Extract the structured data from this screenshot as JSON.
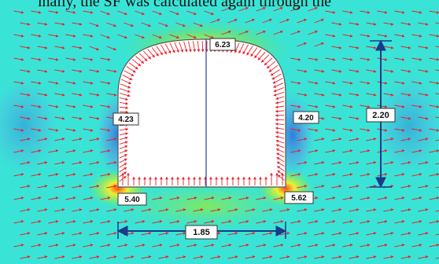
{
  "header_text": "inally, the SF was calculated again through the",
  "labels": {
    "crown": "6.23",
    "left_wall": "4.23",
    "right_wall": "4.20",
    "left_corner": "5.40",
    "right_corner": "5.62",
    "height": "2.20",
    "width": "1.85"
  },
  "colors": {
    "background_field": "#35e3d6",
    "low_zone": "#4a90e0",
    "high_zone": "#e8f02a",
    "vector": "#e8202a",
    "dimension": "#1a3a8a"
  }
}
